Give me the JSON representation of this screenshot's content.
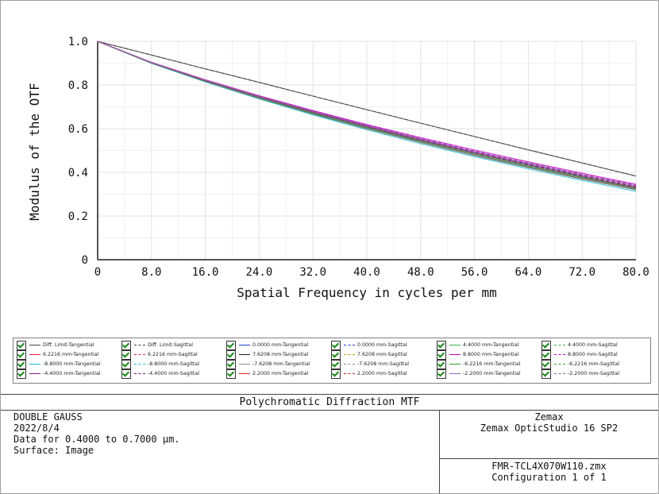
{
  "chart_data": {
    "type": "line",
    "title": "Polychromatic Diffraction MTF",
    "xlabel": "Spatial Frequency in cycles per mm",
    "ylabel": "Modulus of the OTF",
    "xlim": [
      0,
      80
    ],
    "ylim": [
      0,
      1
    ],
    "x_ticks": [
      "0",
      "8.0",
      "16.0",
      "24.0",
      "32.0",
      "40.0",
      "48.0",
      "56.0",
      "64.0",
      "72.0",
      "80.0"
    ],
    "y_ticks": [
      "0",
      "0.2",
      "0.4",
      "0.6",
      "0.8",
      "1.0"
    ],
    "grid": true,
    "x": [
      0,
      8,
      16,
      24,
      32,
      40,
      48,
      56,
      64,
      72,
      80
    ],
    "series": [
      {
        "name": "Diff. Limit-Tangential",
        "color": "#444444",
        "dash": "solid",
        "values": [
          1.0,
          0.937,
          0.874,
          0.812,
          0.749,
          0.687,
          0.625,
          0.564,
          0.503,
          0.443,
          0.383
        ]
      },
      {
        "name": "Diff. Limit-Sagittal",
        "color": "#444444",
        "dash": "dash",
        "values": [
          1.0,
          0.937,
          0.874,
          0.812,
          0.749,
          0.687,
          0.625,
          0.564,
          0.503,
          0.443,
          0.383
        ]
      },
      {
        "name": "0.0000 mm-Tangential",
        "color": "#1f3fd0",
        "dash": "solid",
        "values": [
          1.0,
          0.903,
          0.822,
          0.748,
          0.679,
          0.614,
          0.553,
          0.495,
          0.441,
          0.389,
          0.338
        ]
      },
      {
        "name": "0.0000 mm-Sagittal",
        "color": "#1f3fd0",
        "dash": "dash",
        "values": [
          1.0,
          0.903,
          0.822,
          0.748,
          0.679,
          0.614,
          0.553,
          0.495,
          0.441,
          0.389,
          0.338
        ]
      },
      {
        "name": "4.4000 mm-Tangential",
        "color": "#3cb44b",
        "dash": "solid",
        "values": [
          1.0,
          0.902,
          0.82,
          0.745,
          0.675,
          0.609,
          0.547,
          0.489,
          0.434,
          0.381,
          0.33
        ]
      },
      {
        "name": "4.4000 mm-Sagittal",
        "color": "#3cb44b",
        "dash": "dash",
        "values": [
          1.0,
          0.902,
          0.821,
          0.747,
          0.677,
          0.612,
          0.55,
          0.492,
          0.437,
          0.385,
          0.334
        ]
      },
      {
        "name": "6.2216 mm-Tangential",
        "color": "#e6194b",
        "dash": "solid",
        "values": [
          1.0,
          0.901,
          0.818,
          0.742,
          0.671,
          0.604,
          0.542,
          0.483,
          0.428,
          0.375,
          0.325
        ]
      },
      {
        "name": "6.2216 mm-Sagittal",
        "color": "#e6194b",
        "dash": "dash",
        "values": [
          1.0,
          0.902,
          0.82,
          0.746,
          0.676,
          0.611,
          0.549,
          0.491,
          0.436,
          0.384,
          0.333
        ]
      },
      {
        "name": "7.6208 mm-Tangential",
        "color": "#222222",
        "dash": "solid",
        "values": [
          1.0,
          0.9,
          0.816,
          0.739,
          0.667,
          0.6,
          0.537,
          0.478,
          0.422,
          0.37,
          0.32
        ]
      },
      {
        "name": "7.6208 mm-Sagittal",
        "color": "#c8a800",
        "dash": "dash",
        "values": [
          1.0,
          0.902,
          0.82,
          0.745,
          0.675,
          0.61,
          0.548,
          0.49,
          0.435,
          0.383,
          0.332
        ]
      },
      {
        "name": "8.8000 mm-Tangential",
        "color": "#c000c0",
        "dash": "solid",
        "values": [
          1.0,
          0.904,
          0.824,
          0.751,
          0.683,
          0.619,
          0.559,
          0.502,
          0.448,
          0.396,
          0.345
        ]
      },
      {
        "name": "8.8000 mm-Sagittal",
        "color": "#c000c0",
        "dash": "dash",
        "values": [
          1.0,
          0.903,
          0.823,
          0.749,
          0.68,
          0.616,
          0.555,
          0.498,
          0.443,
          0.391,
          0.341
        ]
      },
      {
        "name": "-8.8000 mm-Tangential",
        "color": "#17becf",
        "dash": "solid",
        "values": [
          1.0,
          0.899,
          0.814,
          0.736,
          0.663,
          0.595,
          0.531,
          0.472,
          0.416,
          0.363,
          0.313
        ]
      },
      {
        "name": "-8.8000 mm-Sagittal",
        "color": "#17becf",
        "dash": "dash",
        "values": [
          1.0,
          0.901,
          0.818,
          0.743,
          0.673,
          0.607,
          0.545,
          0.487,
          0.432,
          0.38,
          0.33
        ]
      },
      {
        "name": "-7.6208 mm-Tangential",
        "color": "#888888",
        "dash": "solid",
        "values": [
          1.0,
          0.9,
          0.816,
          0.739,
          0.668,
          0.601,
          0.538,
          0.479,
          0.424,
          0.371,
          0.321
        ]
      },
      {
        "name": "-7.6208 mm-Sagittal",
        "color": "#888888",
        "dash": "dash",
        "values": [
          1.0,
          0.902,
          0.819,
          0.744,
          0.674,
          0.609,
          0.547,
          0.489,
          0.434,
          0.382,
          0.331
        ]
      },
      {
        "name": "-6.2216 mm-Tangential",
        "color": "#2ca02c",
        "dash": "solid",
        "values": [
          1.0,
          0.901,
          0.818,
          0.742,
          0.671,
          0.605,
          0.542,
          0.484,
          0.428,
          0.376,
          0.326
        ]
      },
      {
        "name": "-6.2216 mm-Sagittal",
        "color": "#2ca02c",
        "dash": "dash",
        "values": [
          1.0,
          0.902,
          0.82,
          0.746,
          0.676,
          0.611,
          0.549,
          0.491,
          0.436,
          0.384,
          0.333
        ]
      },
      {
        "name": "-4.4000 mm-Tangential",
        "color": "#7f1f7f",
        "dash": "solid",
        "values": [
          1.0,
          0.902,
          0.82,
          0.745,
          0.675,
          0.609,
          0.547,
          0.489,
          0.434,
          0.381,
          0.33
        ]
      },
      {
        "name": "-4.4000 mm-Sagittal",
        "color": "#7f1f7f",
        "dash": "dash",
        "values": [
          1.0,
          0.902,
          0.821,
          0.747,
          0.677,
          0.612,
          0.55,
          0.492,
          0.437,
          0.385,
          0.334
        ]
      },
      {
        "name": "2.2000 mm-Tangential",
        "color": "#d62728",
        "dash": "solid",
        "values": [
          1.0,
          0.903,
          0.822,
          0.747,
          0.678,
          0.613,
          0.552,
          0.494,
          0.44,
          0.388,
          0.337
        ]
      },
      {
        "name": "2.2000 mm-Sagittal",
        "color": "#d62728",
        "dash": "dash",
        "values": [
          1.0,
          0.903,
          0.822,
          0.748,
          0.679,
          0.614,
          0.553,
          0.495,
          0.441,
          0.389,
          0.338
        ]
      },
      {
        "name": "-2.2000 mm-Tangential",
        "color": "#9467bd",
        "dash": "solid",
        "values": [
          1.0,
          0.903,
          0.822,
          0.747,
          0.678,
          0.613,
          0.552,
          0.494,
          0.44,
          0.388,
          0.337
        ]
      },
      {
        "name": "-2.2000 mm-Sagittal",
        "color": "#9467bd",
        "dash": "dash",
        "values": [
          1.0,
          0.903,
          0.822,
          0.748,
          0.679,
          0.614,
          0.553,
          0.495,
          0.441,
          0.389,
          0.338
        ]
      }
    ]
  },
  "legend_order": [
    "Diff. Limit-Tangential",
    "Diff. Limit-Sagittal",
    "0.0000 mm-Tangential",
    "0.0000 mm-Sagittal",
    "4.4000 mm-Tangential",
    "4.4000 mm-Sagittal",
    "6.2216 mm-Tangential",
    "6.2216 mm-Sagittal",
    "7.6208 mm-Tangential",
    "7.6208 mm-Sagittal",
    "8.8000 mm-Tangential",
    "8.8000 mm-Sagittal",
    "-8.8000 mm-Tangential",
    "-8.8000 mm-Sagittal",
    "-7.6208 mm-Tangential",
    "-7.6208 mm-Sagittal",
    "-6.2216 mm-Tangential",
    "-6.2216 mm-Sagittal",
    "-4.4000 mm-Tangential",
    "-4.4000 mm-Sagittal",
    "2.2000 mm-Tangential",
    "2.2000 mm-Sagittal",
    "-2.2000 mm-Tangential",
    "-2.2000 mm-Sagittal"
  ],
  "info": {
    "title": "Polychromatic Diffraction MTF",
    "lens_name": "DOUBLE GAUSS",
    "date": "2022/8/4",
    "wavelength": "Data for 0.4000 to 0.7000 µm.",
    "surface": "Surface: Image",
    "vendor": "Zemax",
    "software": "Zemax OpticStudio 16 SP2",
    "file": "FMR-TCL4X070W110.zmx",
    "config": "Configuration 1 of 1"
  }
}
